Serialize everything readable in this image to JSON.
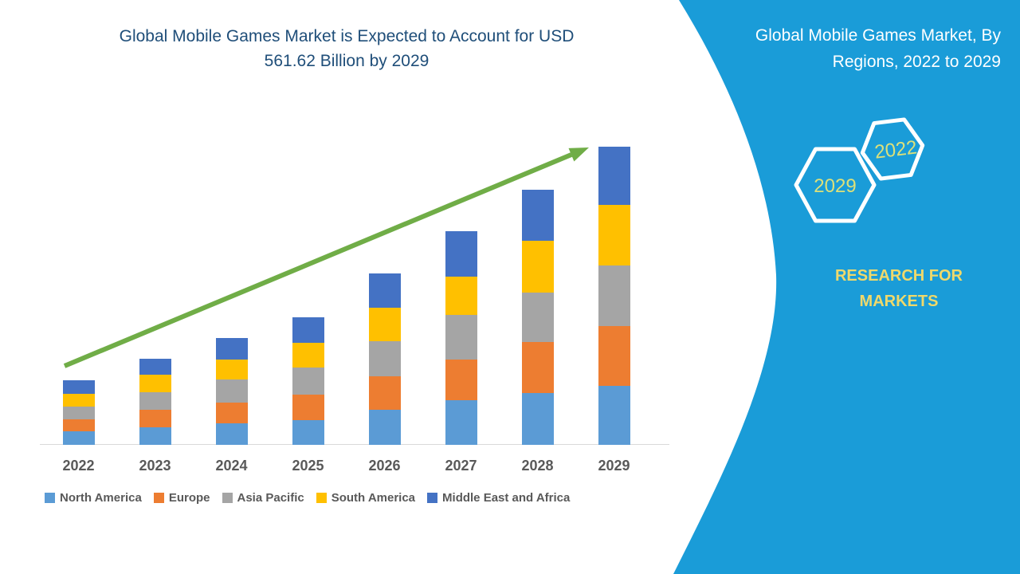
{
  "chart": {
    "title_lines": [
      "Global Mobile Games Market is Expected to Account for USD",
      "561.62 Billion by 2029"
    ]
  },
  "chart_data": {
    "type": "bar",
    "stacked": true,
    "title": "Global Mobile Games Market is Expected to Account for USD 561.62 Billion by 2029",
    "categories": [
      "2022",
      "2023",
      "2024",
      "2025",
      "2026",
      "2027",
      "2028",
      "2029"
    ],
    "series": [
      {
        "name": "North America",
        "color": "#5B9BD5",
        "values": [
          25.0,
          32.6,
          40.1,
          46.1,
          65.7,
          84.2,
          97.7,
          111.7
        ]
      },
      {
        "name": "Europe",
        "color": "#ED7D31",
        "values": [
          23.5,
          33.5,
          40.1,
          49.1,
          63.6,
          76.7,
          96.7,
          112.7
        ]
      },
      {
        "name": "Asia Pacific",
        "color": "#A5A5A5",
        "values": [
          23.5,
          32.6,
          42.5,
          51.1,
          66.1,
          84.2,
          92.7,
          112.9
        ]
      },
      {
        "name": "South America",
        "color": "#FFC000",
        "values": [
          25.0,
          33.5,
          38.6,
          46.6,
          63.1,
          72.1,
          97.7,
          114.2
        ]
      },
      {
        "name": "Middle East and Africa",
        "color": "#4472C4",
        "values": [
          24.3,
          30.5,
          40.1,
          47.6,
          64.2,
          85.2,
          95.1,
          110.1
        ]
      }
    ],
    "totals": [
      121.3,
      162.7,
      201.4,
      240.5,
      322.7,
      402.4,
      479.9,
      561.62
    ],
    "unit": "USD Billion",
    "values_estimated_from_bar_heights": true,
    "labeled_value": "USD 561.62 Billion by 2029",
    "xlabel": "",
    "ylabel": "",
    "ylim": [
      0,
      600
    ],
    "grid": false,
    "value_axis_shown": false,
    "legend_position": "bottom",
    "annotations": [
      "green upward trend arrow from 2022 to 2029"
    ],
    "arrow_color": "#70AD47"
  },
  "axis": {
    "tick_label_color": "#595959"
  },
  "legend": {
    "text_color": "#595959"
  },
  "panel": {
    "title_lines": [
      "Global Mobile Games Market, By",
      "Regions, 2022 to 2029"
    ],
    "title_full": "Global Mobile Games Market, By Regions, 2022 to 2029",
    "background_color": "#1A9CD8",
    "hexagons": [
      {
        "label": "2022"
      },
      {
        "label": "2029"
      }
    ],
    "hexagon_outline_color": "#FFFFFF",
    "hexagon_label_color": "#DCE07A",
    "brand_lines": [
      "RESEARCH FOR",
      "MARKETS"
    ],
    "brand_color": "#EFD96B"
  },
  "colors": {
    "title": "#1F4E79",
    "background": "#FFFFFF"
  }
}
